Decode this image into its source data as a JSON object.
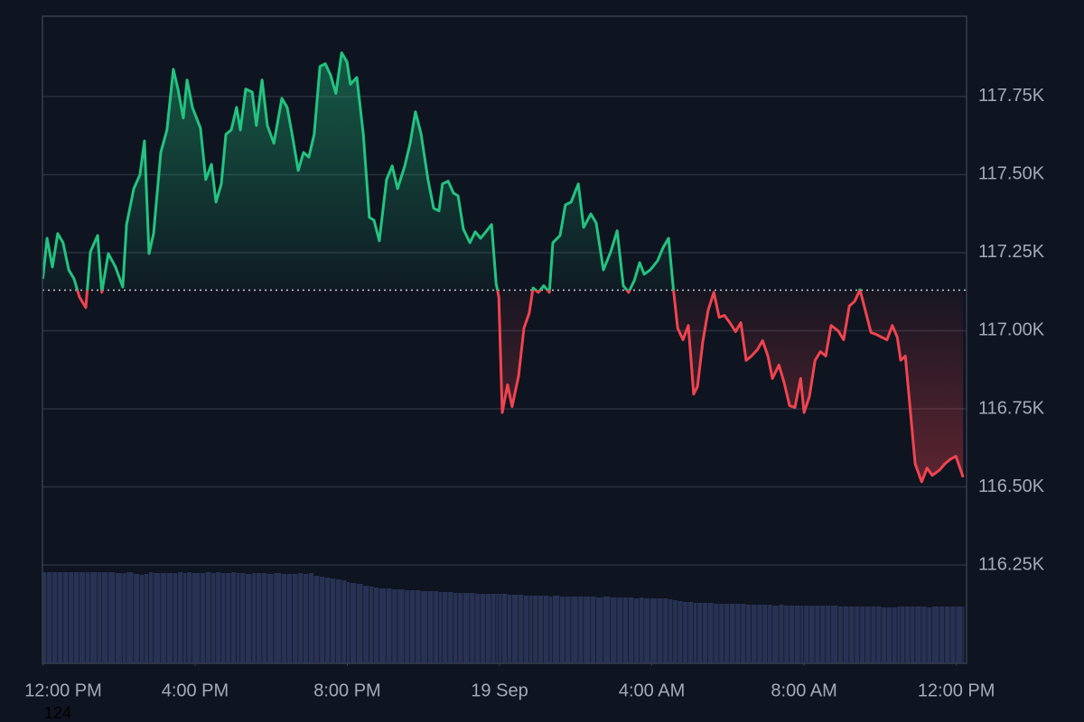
{
  "chart_data": {
    "type": "line",
    "x": [
      0,
      0.11,
      0.25,
      0.39,
      0.53,
      0.68,
      0.82,
      0.96,
      1.13,
      1.25,
      1.44,
      1.55,
      1.72,
      1.91,
      2.1,
      2.2,
      2.39,
      2.55,
      2.67,
      2.79,
      2.91,
      3.1,
      3.26,
      3.43,
      3.55,
      3.69,
      3.79,
      3.93,
      4.14,
      4.28,
      4.43,
      4.55,
      4.69,
      4.81,
      4.95,
      5.09,
      5.19,
      5.33,
      5.5,
      5.61,
      5.76,
      5.9,
      6.07,
      6.28,
      6.42,
      6.56,
      6.71,
      6.85,
      6.99,
      7.13,
      7.28,
      7.42,
      7.56,
      7.7,
      7.85,
      7.99,
      8.08,
      8.25,
      8.42,
      8.58,
      8.7,
      8.84,
      9.03,
      9.18,
      9.32,
      9.51,
      9.65,
      9.79,
      9.94,
      10.12,
      10.27,
      10.41,
      10.5,
      10.65,
      10.79,
      10.91,
      11.05,
      11.22,
      11.36,
      11.5,
      11.64,
      11.79,
      11.91,
      11.98,
      12.07,
      12.21,
      12.33,
      12.5,
      12.64,
      12.78,
      12.88,
      13.02,
      13.16,
      13.31,
      13.4,
      13.59,
      13.73,
      13.88,
      14.07,
      14.21,
      14.4,
      14.54,
      14.73,
      14.92,
      15.09,
      15.25,
      15.39,
      15.54,
      15.68,
      15.8,
      15.96,
      16.15,
      16.3,
      16.44,
      16.56,
      16.68,
      16.82,
      16.96,
      17.1,
      17.2,
      17.34,
      17.48,
      17.63,
      17.77,
      17.91,
      18.05,
      18.2,
      18.34,
      18.48,
      18.62,
      18.77,
      18.91,
      19.05,
      19.17,
      19.34,
      19.48,
      19.62,
      19.76,
      19.91,
      20.0,
      20.14,
      20.29,
      20.43,
      20.57,
      20.71,
      20.9,
      21.04,
      21.19,
      21.33,
      21.47,
      21.61,
      21.76,
      21.9,
      22.04,
      22.18,
      22.32,
      22.45,
      22.54,
      22.66,
      22.8,
      22.92,
      23.09,
      23.23,
      23.37,
      23.56,
      23.7,
      23.85,
      23.99,
      24.18
    ],
    "values": [
      117166,
      117296,
      117204,
      117311,
      117282,
      117195,
      117166,
      117108,
      117074,
      117253,
      117305,
      117123,
      117247,
      117204,
      117140,
      117340,
      117455,
      117499,
      117608,
      117247,
      117311,
      117571,
      117643,
      117837,
      117774,
      117681,
      117803,
      117715,
      117649,
      117484,
      117533,
      117412,
      117470,
      117629,
      117643,
      117715,
      117643,
      117774,
      117764,
      117657,
      117803,
      117657,
      117600,
      117744,
      117715,
      117622,
      117513,
      117571,
      117556,
      117629,
      117846,
      117855,
      117818,
      117760,
      117890,
      117861,
      117789,
      117811,
      117629,
      117363,
      117354,
      117288,
      117484,
      117528,
      117455,
      117528,
      117600,
      117701,
      117629,
      117484,
      117392,
      117384,
      117470,
      117479,
      117441,
      117432,
      117325,
      117282,
      117317,
      117296,
      117317,
      117340,
      117152,
      117108,
      116738,
      116827,
      116757,
      116855,
      117008,
      117057,
      117137,
      117123,
      117144,
      117123,
      117282,
      117305,
      117403,
      117412,
      117470,
      117331,
      117374,
      117345,
      117195,
      117253,
      117320,
      117144,
      117123,
      117161,
      117218,
      117181,
      117195,
      117224,
      117267,
      117296,
      117140,
      117008,
      116971,
      117017,
      116797,
      116821,
      116965,
      117065,
      117123,
      117043,
      117049,
      117026,
      116997,
      117026,
      116905,
      116919,
      116939,
      116968,
      116919,
      116847,
      116890,
      116832,
      116760,
      116754,
      116847,
      116738,
      116789,
      116905,
      116933,
      116919,
      117017,
      116999,
      116971,
      117079,
      117094,
      117131,
      117065,
      116994,
      116988,
      116979,
      116971,
      117017,
      116979,
      116905,
      116919,
      116733,
      116574,
      116516,
      116560,
      116537,
      116554,
      116574,
      116589,
      116598,
      116531
    ],
    "volume": [
      101,
      101,
      101,
      101,
      101,
      101,
      101,
      101,
      101,
      101,
      101,
      101,
      101,
      100,
      100,
      101,
      99,
      98,
      99,
      101,
      100,
      100,
      100,
      100,
      101,
      100,
      101,
      100,
      100,
      101,
      100,
      101,
      100,
      100,
      101,
      100,
      100,
      99,
      100,
      100,
      100,
      99,
      100,
      99,
      99,
      99,
      100,
      99,
      100,
      97,
      96,
      95,
      94,
      93,
      92,
      90,
      89,
      88,
      86,
      85,
      84,
      83,
      83,
      82,
      82,
      81,
      81,
      81,
      80,
      80,
      80,
      79,
      79,
      79,
      78,
      78,
      78,
      78,
      77,
      77,
      77,
      77,
      77,
      77,
      77,
      76,
      76,
      76,
      75,
      75,
      75,
      75,
      75,
      74,
      75,
      74,
      74,
      74,
      74,
      74,
      74,
      73,
      74,
      73,
      73,
      73,
      73,
      72,
      73,
      72,
      72,
      72,
      72,
      71,
      70,
      69,
      68,
      68,
      67,
      67,
      67,
      67,
      66,
      66,
      66,
      66,
      66,
      66,
      65,
      65,
      65,
      65,
      65,
      64,
      65,
      64,
      64,
      64,
      64,
      64,
      64,
      64,
      64,
      64,
      64,
      63,
      63,
      63,
      63,
      63,
      63,
      63,
      63,
      62,
      62,
      62,
      63,
      63,
      63,
      63,
      63,
      63,
      62,
      63,
      63,
      63,
      63,
      63,
      63
    ],
    "volume_lim": [
      0,
      110
    ],
    "baseline": 117130,
    "up_color": "#22c47f",
    "down_color": "#f0444e",
    "volume_color": "#283253",
    "xlim": [
      -0.01,
      24.27
    ],
    "ylim": [
      115935,
      118007
    ],
    "xticks": [
      {
        "value": 0,
        "label": "12:00 PM"
      },
      {
        "value": 4,
        "label": "4:00 PM"
      },
      {
        "value": 8,
        "label": "8:00 PM"
      },
      {
        "value": 12,
        "label": "19 Sep"
      },
      {
        "value": 16,
        "label": "4:00 AM"
      },
      {
        "value": 20,
        "label": "8:00 AM"
      },
      {
        "value": 24,
        "label": "12:00 PM"
      }
    ],
    "yticks": [
      {
        "value": 116250,
        "label": "116.25K"
      },
      {
        "value": 116500,
        "label": "116.50K"
      },
      {
        "value": 116750,
        "label": "116.75K"
      },
      {
        "value": 117000,
        "label": "117.00K"
      },
      {
        "value": 117250,
        "label": "117.25K"
      },
      {
        "value": 117500,
        "label": "117.50K"
      },
      {
        "value": 117750,
        "label": "117.75K"
      }
    ],
    "grid": true,
    "corner_label": "124"
  }
}
